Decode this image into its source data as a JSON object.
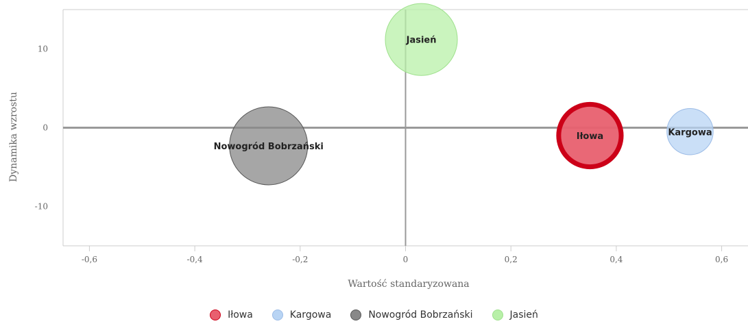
{
  "chart_data": {
    "type": "bubble",
    "xlabel": "Wartość standaryzowana",
    "ylabel": "Dynamika wzrostu",
    "xlim": [
      -0.65,
      0.65
    ],
    "ylim": [
      -15,
      15
    ],
    "xticks": [
      -0.6,
      -0.4,
      -0.2,
      0,
      0.2,
      0.4,
      0.6
    ],
    "xtick_labels": [
      "-0,6",
      "-0,4",
      "-0,2",
      "0",
      "0,2",
      "0,4",
      "0,6"
    ],
    "yticks": [
      10,
      0,
      -10
    ],
    "ytick_labels": [
      "10",
      "0",
      "-10"
    ],
    "reference_lines": {
      "x": 0,
      "y": 0
    },
    "legend_position": "bottom",
    "series": [
      {
        "name": "Iłowa",
        "x": 0.35,
        "y": -1,
        "size": 0.64,
        "color": "#e8606f",
        "stroke": "#cc0018",
        "highlighted": true
      },
      {
        "name": "Kargowa",
        "x": 0.54,
        "y": -0.5,
        "size": 0.35,
        "color": "#b8d4f4",
        "stroke": "#9bbbe6",
        "highlighted": false
      },
      {
        "name": "Nowogród Bobrzański",
        "x": -0.26,
        "y": -2.3,
        "size": 1.0,
        "color": "#888888",
        "stroke": "#555555",
        "highlighted": false
      },
      {
        "name": "Jasień",
        "x": 0.03,
        "y": 11.2,
        "size": 0.85,
        "color": "#b8f0a8",
        "stroke": "#9ee08c",
        "highlighted": false
      }
    ]
  }
}
